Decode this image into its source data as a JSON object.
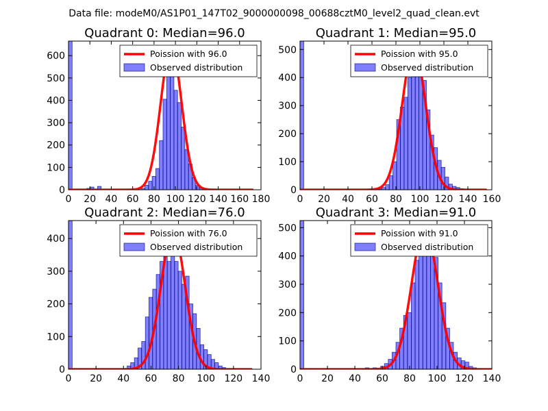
{
  "figure_title": "Data file: modeM0/AS1P01_147T02_9000000098_00688cztM0_level2_quad_clean.evt",
  "chart_data": [
    {
      "type": "bar",
      "title": "Quadrant 0: Median=96.0",
      "xlabel": "",
      "ylabel": "",
      "xlim": [
        0,
        180
      ],
      "ylim": [
        0,
        665
      ],
      "xticks": [
        "0",
        "20",
        "40",
        "60",
        "80",
        "100",
        "120",
        "140",
        "160",
        "180"
      ],
      "yticks": [
        "0",
        "100",
        "200",
        "300",
        "400",
        "500",
        "600"
      ],
      "legend": {
        "placement": "upper right",
        "line_label": "Poission with 96.0",
        "bar_label": "Observed distribution"
      },
      "poisson_mean": 96.0,
      "poisson_peak": 640,
      "poisson_xrange": [
        0,
        172
      ],
      "bin_width": 3.4,
      "bins": [
        {
          "x": 0,
          "y": 665
        },
        {
          "x": 3.4,
          "y": 0
        },
        {
          "x": 6.8,
          "y": 0
        },
        {
          "x": 10.2,
          "y": 0
        },
        {
          "x": 13.6,
          "y": 0
        },
        {
          "x": 17.0,
          "y": 6
        },
        {
          "x": 20.4,
          "y": 12
        },
        {
          "x": 23.8,
          "y": 0
        },
        {
          "x": 27.2,
          "y": 15
        },
        {
          "x": 30.6,
          "y": 0
        },
        {
          "x": 34.0,
          "y": 0
        },
        {
          "x": 37.4,
          "y": 0
        },
        {
          "x": 40.8,
          "y": 0
        },
        {
          "x": 44.2,
          "y": 0
        },
        {
          "x": 47.6,
          "y": 0
        },
        {
          "x": 51.0,
          "y": 0
        },
        {
          "x": 54.4,
          "y": 0
        },
        {
          "x": 57.8,
          "y": 0
        },
        {
          "x": 61.2,
          "y": 0
        },
        {
          "x": 64.6,
          "y": 0
        },
        {
          "x": 68.0,
          "y": 6
        },
        {
          "x": 71.4,
          "y": 20
        },
        {
          "x": 74.8,
          "y": 38
        },
        {
          "x": 78.2,
          "y": 60
        },
        {
          "x": 81.6,
          "y": 95
        },
        {
          "x": 85.0,
          "y": 220
        },
        {
          "x": 88.4,
          "y": 405
        },
        {
          "x": 91.8,
          "y": 530
        },
        {
          "x": 95.2,
          "y": 580
        },
        {
          "x": 98.6,
          "y": 445
        },
        {
          "x": 102.0,
          "y": 390
        },
        {
          "x": 105.4,
          "y": 280
        },
        {
          "x": 108.8,
          "y": 180
        },
        {
          "x": 112.2,
          "y": 115
        },
        {
          "x": 115.6,
          "y": 55
        },
        {
          "x": 119.0,
          "y": 20
        },
        {
          "x": 122.4,
          "y": 10
        },
        {
          "x": 125.8,
          "y": 5
        }
      ]
    },
    {
      "type": "bar",
      "title": "Quadrant 1: Median=95.0",
      "xlabel": "",
      "ylabel": "",
      "xlim": [
        0,
        160
      ],
      "ylim": [
        0,
        530
      ],
      "xticks": [
        "0",
        "20",
        "40",
        "60",
        "80",
        "100",
        "120",
        "140",
        "160"
      ],
      "yticks": [
        "0",
        "100",
        "200",
        "300",
        "400",
        "500"
      ],
      "legend": {
        "placement": "upper right",
        "line_label": "Poission with 95.0",
        "bar_label": "Observed distribution"
      },
      "poisson_mean": 95.0,
      "poisson_peak": 505,
      "poisson_xrange": [
        0,
        155
      ],
      "bin_width": 3.1,
      "bins": [
        {
          "x": 0,
          "y": 530
        },
        {
          "x": 65.1,
          "y": 3
        },
        {
          "x": 68.2,
          "y": 8
        },
        {
          "x": 71.3,
          "y": 18
        },
        {
          "x": 74.4,
          "y": 50
        },
        {
          "x": 77.5,
          "y": 100
        },
        {
          "x": 80.6,
          "y": 250
        },
        {
          "x": 83.7,
          "y": 295
        },
        {
          "x": 86.8,
          "y": 330
        },
        {
          "x": 89.9,
          "y": 400
        },
        {
          "x": 93.0,
          "y": 455
        },
        {
          "x": 96.1,
          "y": 445
        },
        {
          "x": 99.2,
          "y": 500
        },
        {
          "x": 102.3,
          "y": 390
        },
        {
          "x": 105.4,
          "y": 285
        },
        {
          "x": 108.5,
          "y": 195
        },
        {
          "x": 111.6,
          "y": 150
        },
        {
          "x": 114.7,
          "y": 105
        },
        {
          "x": 117.8,
          "y": 80
        },
        {
          "x": 120.9,
          "y": 45
        },
        {
          "x": 124.0,
          "y": 20
        },
        {
          "x": 127.1,
          "y": 12
        },
        {
          "x": 130.2,
          "y": 8
        },
        {
          "x": 133.3,
          "y": 4
        }
      ]
    },
    {
      "type": "bar",
      "title": "Quadrant 2: Median=76.0",
      "xlabel": "",
      "ylabel": "",
      "xlim": [
        0,
        140
      ],
      "ylim": [
        0,
        455
      ],
      "xticks": [
        "0",
        "20",
        "40",
        "60",
        "80",
        "100",
        "120",
        "140"
      ],
      "yticks": [
        "0",
        "100",
        "200",
        "300",
        "400"
      ],
      "legend": {
        "placement": "upper right",
        "line_label": "Poission with 76.0",
        "bar_label": "Observed distribution"
      },
      "poisson_mean": 76.0,
      "poisson_peak": 425,
      "poisson_xrange": [
        0,
        133
      ],
      "bin_width": 2.66,
      "bins": [
        {
          "x": 0,
          "y": 455
        },
        {
          "x": 42.6,
          "y": 10
        },
        {
          "x": 45.2,
          "y": 20
        },
        {
          "x": 47.9,
          "y": 35
        },
        {
          "x": 50.5,
          "y": 65
        },
        {
          "x": 53.2,
          "y": 85
        },
        {
          "x": 55.9,
          "y": 160
        },
        {
          "x": 58.5,
          "y": 220
        },
        {
          "x": 61.2,
          "y": 245
        },
        {
          "x": 63.8,
          "y": 290
        },
        {
          "x": 66.5,
          "y": 330
        },
        {
          "x": 69.2,
          "y": 370
        },
        {
          "x": 71.8,
          "y": 330
        },
        {
          "x": 74.5,
          "y": 410
        },
        {
          "x": 77.1,
          "y": 330
        },
        {
          "x": 79.8,
          "y": 300
        },
        {
          "x": 82.5,
          "y": 260
        },
        {
          "x": 85.1,
          "y": 285
        },
        {
          "x": 87.8,
          "y": 200
        },
        {
          "x": 90.4,
          "y": 170
        },
        {
          "x": 93.1,
          "y": 125
        },
        {
          "x": 95.8,
          "y": 75
        },
        {
          "x": 98.4,
          "y": 60
        },
        {
          "x": 101.1,
          "y": 45
        },
        {
          "x": 103.7,
          "y": 30
        },
        {
          "x": 106.4,
          "y": 20
        },
        {
          "x": 109.1,
          "y": 10
        },
        {
          "x": 111.7,
          "y": 5
        }
      ]
    },
    {
      "type": "bar",
      "title": "Quadrant 3: Median=91.0",
      "xlabel": "",
      "ylabel": "",
      "xlim": [
        0,
        140
      ],
      "ylim": [
        0,
        525
      ],
      "xticks": [
        "0",
        "20",
        "40",
        "60",
        "80",
        "100",
        "120",
        "140"
      ],
      "yticks": [
        "0",
        "100",
        "200",
        "300",
        "400",
        "500"
      ],
      "legend": {
        "placement": "upper right",
        "line_label": "Poission with 91.0",
        "bar_label": "Observed distribution"
      },
      "poisson_mean": 91.0,
      "poisson_peak": 500,
      "poisson_xrange": [
        0,
        140
      ],
      "bin_width": 2.8,
      "bins": [
        {
          "x": 0,
          "y": 525
        },
        {
          "x": 47.6,
          "y": 5
        },
        {
          "x": 53.2,
          "y": 5
        },
        {
          "x": 58.8,
          "y": 10
        },
        {
          "x": 61.6,
          "y": 20
        },
        {
          "x": 64.4,
          "y": 35
        },
        {
          "x": 67.2,
          "y": 60
        },
        {
          "x": 70.0,
          "y": 95
        },
        {
          "x": 72.8,
          "y": 145
        },
        {
          "x": 75.6,
          "y": 190
        },
        {
          "x": 78.4,
          "y": 200
        },
        {
          "x": 81.2,
          "y": 305
        },
        {
          "x": 84.0,
          "y": 385
        },
        {
          "x": 86.8,
          "y": 420
        },
        {
          "x": 89.6,
          "y": 445
        },
        {
          "x": 92.4,
          "y": 480
        },
        {
          "x": 95.2,
          "y": 445
        },
        {
          "x": 98.0,
          "y": 395
        },
        {
          "x": 100.8,
          "y": 305
        },
        {
          "x": 103.6,
          "y": 235
        },
        {
          "x": 106.4,
          "y": 145
        },
        {
          "x": 109.2,
          "y": 95
        },
        {
          "x": 112.0,
          "y": 60
        },
        {
          "x": 114.8,
          "y": 40
        },
        {
          "x": 117.6,
          "y": 30
        },
        {
          "x": 120.4,
          "y": 25
        },
        {
          "x": 123.2,
          "y": 10
        },
        {
          "x": 126.0,
          "y": 5
        }
      ]
    }
  ]
}
